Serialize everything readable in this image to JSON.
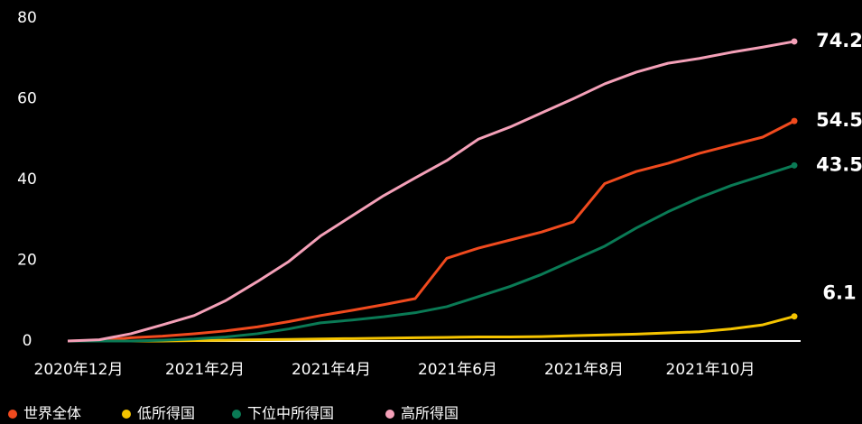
{
  "chart_data": {
    "type": "line",
    "categories": [
      "2020年12月",
      null,
      null,
      null,
      "2021年2月",
      null,
      null,
      null,
      "2021年4月",
      null,
      null,
      null,
      "2021年6月",
      null,
      null,
      null,
      "2021年8月",
      null,
      null,
      null,
      "2021年10月",
      null,
      null,
      null
    ],
    "series": [
      {
        "name": "世界全体",
        "color": "#f04a1e",
        "values": [
          0,
          0.1,
          0.8,
          1.2,
          1.8,
          2.5,
          3.5,
          4.8,
          6.3,
          7.6,
          9,
          10.5,
          20.5,
          23,
          25,
          27,
          29.5,
          39,
          42,
          44,
          46.5,
          48.5,
          50.5,
          54.5
        ]
      },
      {
        "name": "低所得国",
        "color": "#f5c400",
        "values": [
          0,
          0,
          0,
          0,
          0.1,
          0.2,
          0.3,
          0.4,
          0.5,
          0.6,
          0.7,
          0.8,
          0.9,
          1,
          1,
          1.1,
          1.3,
          1.5,
          1.7,
          2,
          2.3,
          3,
          4,
          6.1
        ]
      },
      {
        "name": "下位中所得国",
        "color": "#0a7a55",
        "values": [
          0,
          0,
          0,
          0.2,
          0.5,
          1,
          1.8,
          3,
          4.5,
          5.2,
          6,
          7,
          8.5,
          11,
          13.5,
          16.5,
          20,
          23.5,
          28,
          32,
          35.5,
          38.5,
          41,
          43.5
        ]
      },
      {
        "name": "高所得国",
        "color": "#f4a0b8",
        "values": [
          0,
          0.3,
          1.8,
          4,
          6.3,
          10,
          14.7,
          19.7,
          26,
          31,
          36,
          40.4,
          44.7,
          50,
          53,
          56.5,
          60,
          63.7,
          66.6,
          68.8,
          70,
          71.5,
          72.8,
          74.2
        ]
      }
    ],
    "ylim": [
      0,
      80
    ],
    "yticks": [
      0,
      20,
      40,
      60,
      80
    ]
  }
}
